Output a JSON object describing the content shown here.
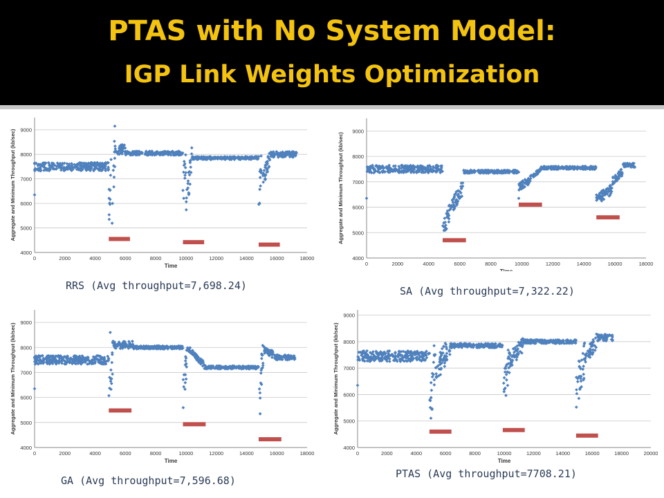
{
  "title_line1": "PTAS with No System Model:",
  "title_line2": "IGP Link Weights Optimization",
  "colors": {
    "title": "#f4c310",
    "header_bg": "#000000",
    "points": "#4f81bd",
    "markers": "#c0504d"
  },
  "chart_data": [
    {
      "type": "scatter",
      "caption": "RRS (Avg throughput=7,698.24)",
      "xlabel": "Time",
      "ylabel": "Aggregate and Minimum Throughput (kb/sec)",
      "xlim": [
        0,
        18000
      ],
      "ylim": [
        4000,
        9500
      ],
      "xticks": [
        0,
        2000,
        4000,
        6000,
        8000,
        10000,
        12000,
        14000,
        16000,
        18000
      ],
      "xtick_labels": [
        "0",
        "2000",
        "4000",
        "6000",
        "8000",
        "10000",
        "12000",
        "14000",
        "16000",
        "18000"
      ],
      "yticks": [
        4000,
        5000,
        6000,
        7000,
        8000,
        9000
      ],
      "ytick_labels": [
        "4000",
        "5000",
        "6000",
        "7000",
        "8000",
        "9000"
      ],
      "grid": true,
      "series": [
        {
          "role": "throughput",
          "color": "#4f81bd",
          "outliers": [
            [
              0,
              6350
            ],
            [
              5300,
              9150
            ]
          ],
          "segments": [
            {
              "x": [
                0,
                4900
              ],
              "y": [
                7500,
                7500
              ],
              "spread": 170
            },
            {
              "x": [
                4900,
                5100
              ],
              "y": [
                5800,
                7800
              ],
              "spread": 850
            },
            {
              "x": [
                5100,
                5300
              ],
              "y": [
                5200,
                8300
              ],
              "spread": 850
            },
            {
              "x": [
                5300,
                6000
              ],
              "y": [
                8200,
                8200
              ],
              "spread": 200
            },
            {
              "x": [
                6000,
                9800
              ],
              "y": [
                8050,
                8050
              ],
              "spread": 80
            },
            {
              "x": [
                9800,
                10000
              ],
              "y": [
                6500,
                7800
              ],
              "spread": 700
            },
            {
              "x": [
                10000,
                10400
              ],
              "y": [
                6000,
                7900
              ],
              "spread": 550
            },
            {
              "x": [
                10400,
                14800
              ],
              "y": [
                7850,
                7850
              ],
              "spread": 60
            },
            {
              "x": [
                14800,
                15000
              ],
              "y": [
                6200,
                7800
              ],
              "spread": 700
            },
            {
              "x": [
                15000,
                15600
              ],
              "y": [
                6800,
                7900
              ],
              "spread": 350
            },
            {
              "x": [
                15600,
                17300
              ],
              "y": [
                8000,
                8000
              ],
              "spread": 120
            }
          ]
        },
        {
          "role": "minimum",
          "color": "#c0504d",
          "segments": [
            {
              "x": [
                4900,
                6300
              ],
              "y": [
                4550,
                4550
              ]
            },
            {
              "x": [
                9800,
                11200
              ],
              "y": [
                4420,
                4420
              ]
            },
            {
              "x": [
                14800,
                16200
              ],
              "y": [
                4320,
                4320
              ]
            }
          ]
        }
      ]
    },
    {
      "type": "scatter",
      "caption": "SA (Avg throughput=7,322.22)",
      "xlabel": "Time",
      "ylabel": "Aggregate and Minimum Throughput (kb/sec)",
      "xlim": [
        0,
        18000
      ],
      "ylim": [
        4000,
        9500
      ],
      "xticks": [
        0,
        2000,
        4000,
        6000,
        8000,
        10000,
        12000,
        14000,
        16000,
        18000
      ],
      "xtick_labels": [
        "0",
        "2000",
        "4000",
        "6000",
        "8000",
        "10000",
        "12000",
        "14000",
        "16000",
        "18000"
      ],
      "yticks": [
        4000,
        5000,
        6000,
        7000,
        8000,
        9000
      ],
      "ytick_labels": [
        "4000",
        "5000",
        "6000",
        "7000",
        "8000",
        "9000"
      ],
      "grid": true,
      "series": [
        {
          "role": "throughput",
          "color": "#4f81bd",
          "outliers": [
            [
              0,
              6350
            ],
            [
              9800,
              6350
            ],
            [
              14900,
              6400
            ]
          ],
          "segments": [
            {
              "x": [
                0,
                4900
              ],
              "y": [
                7500,
                7500
              ],
              "spread": 150
            },
            {
              "x": [
                4900,
                5300
              ],
              "y": [
                5000,
                5700
              ],
              "spread": 350
            },
            {
              "x": [
                5300,
                6200
              ],
              "y": [
                5800,
                6800
              ],
              "spread": 300
            },
            {
              "x": [
                6200,
                9800
              ],
              "y": [
                7400,
                7400
              ],
              "spread": 60
            },
            {
              "x": [
                9800,
                10600
              ],
              "y": [
                6800,
                7100
              ],
              "spread": 150
            },
            {
              "x": [
                10600,
                11200
              ],
              "y": [
                7200,
                7450
              ],
              "spread": 80
            },
            {
              "x": [
                11200,
                14800
              ],
              "y": [
                7550,
                7550
              ],
              "spread": 60
            },
            {
              "x": [
                14800,
                15800
              ],
              "y": [
                6300,
                6700
              ],
              "spread": 200
            },
            {
              "x": [
                15800,
                16500
              ],
              "y": [
                7000,
                7400
              ],
              "spread": 150
            },
            {
              "x": [
                16500,
                17300
              ],
              "y": [
                7650,
                7650
              ],
              "spread": 80
            }
          ]
        },
        {
          "role": "minimum",
          "color": "#c0504d",
          "segments": [
            {
              "x": [
                4900,
                6400
              ],
              "y": [
                4700,
                4700
              ]
            },
            {
              "x": [
                9800,
                11300
              ],
              "y": [
                6100,
                6100
              ]
            },
            {
              "x": [
                14800,
                16300
              ],
              "y": [
                5600,
                5600
              ]
            }
          ]
        }
      ]
    },
    {
      "type": "scatter",
      "caption": "GA (Avg throughput=7,596.68)",
      "xlabel": "Time",
      "ylabel": "Aggregate and Minimum Throughput (kb/sec)",
      "xlim": [
        0,
        18000
      ],
      "ylim": [
        4000,
        9500
      ],
      "xticks": [
        0,
        2000,
        4000,
        6000,
        8000,
        10000,
        12000,
        14000,
        16000,
        18000
      ],
      "xtick_labels": [
        "0",
        "2000",
        "4000",
        "6000",
        "8000",
        "10000",
        "12000",
        "14000",
        "16000",
        "18000"
      ],
      "yticks": [
        4000,
        5000,
        6000,
        7000,
        8000,
        9000
      ],
      "ytick_labels": [
        "4000",
        "5000",
        "6000",
        "7000",
        "8000",
        "9000"
      ],
      "grid": true,
      "series": [
        {
          "role": "throughput",
          "color": "#4f81bd",
          "outliers": [
            [
              0,
              6350
            ],
            [
              5000,
              8600
            ],
            [
              14900,
              5350
            ]
          ],
          "segments": [
            {
              "x": [
                0,
                4900
              ],
              "y": [
                7500,
                7500
              ],
              "spread": 170
            },
            {
              "x": [
                4900,
                5150
              ],
              "y": [
                5800,
                7600
              ],
              "spread": 700
            },
            {
              "x": [
                5150,
                6500
              ],
              "y": [
                8100,
                8100
              ],
              "spread": 150
            },
            {
              "x": [
                6500,
                9800
              ],
              "y": [
                8000,
                8000
              ],
              "spread": 60
            },
            {
              "x": [
                9800,
                10100
              ],
              "y": [
                6000,
                7800
              ],
              "spread": 650
            },
            {
              "x": [
                10100,
                11200
              ],
              "y": [
                8000,
                7300
              ],
              "spread": 120
            },
            {
              "x": [
                11200,
                14800
              ],
              "y": [
                7200,
                7200
              ],
              "spread": 60
            },
            {
              "x": [
                14800,
                15100
              ],
              "y": [
                6000,
                7700
              ],
              "spread": 650
            },
            {
              "x": [
                15100,
                15800
              ],
              "y": [
                7900,
                7700
              ],
              "spread": 150
            },
            {
              "x": [
                15800,
                17200
              ],
              "y": [
                7600,
                7600
              ],
              "spread": 100
            }
          ]
        },
        {
          "role": "minimum",
          "color": "#c0504d",
          "segments": [
            {
              "x": [
                4900,
                6400
              ],
              "y": [
                5480,
                5480
              ]
            },
            {
              "x": [
                9800,
                11300
              ],
              "y": [
                4930,
                4930
              ]
            },
            {
              "x": [
                14800,
                16300
              ],
              "y": [
                4330,
                4330
              ]
            }
          ]
        }
      ]
    },
    {
      "type": "scatter",
      "caption": "PTAS (Avg throughput=7708.21)",
      "xlabel": "Time",
      "ylabel": "Aggregate and Minimum Throughput (kb/sec)",
      "xlim": [
        0,
        20000
      ],
      "ylim": [
        4000,
        9200
      ],
      "xticks": [
        0,
        2000,
        4000,
        6000,
        8000,
        10000,
        12000,
        14000,
        16000,
        18000,
        20000
      ],
      "xtick_labels": [
        "0",
        "2000",
        "4000",
        "6000",
        "8000",
        "10000",
        "12000",
        "14000",
        "16000",
        "18000",
        "20000"
      ],
      "yticks": [
        4000,
        5000,
        6000,
        7000,
        8000,
        9000
      ],
      "ytick_labels": [
        "4000",
        "5000",
        "6000",
        "7000",
        "8000",
        "9000"
      ],
      "grid": true,
      "series": [
        {
          "role": "throughput",
          "color": "#4f81bd",
          "outliers": [
            [
              0,
              6350
            ]
          ],
          "segments": [
            {
              "x": [
                0,
                4900
              ],
              "y": [
                7450,
                7450
              ],
              "spread": 200
            },
            {
              "x": [
                4900,
                5300
              ],
              "y": [
                5500,
                7400
              ],
              "spread": 900
            },
            {
              "x": [
                5300,
                6300
              ],
              "y": [
                6800,
                7900
              ],
              "spread": 450
            },
            {
              "x": [
                6300,
                9900
              ],
              "y": [
                7850,
                7850
              ],
              "spread": 80
            },
            {
              "x": [
                9900,
                10400
              ],
              "y": [
                6100,
                7400
              ],
              "spread": 700
            },
            {
              "x": [
                10400,
                11300
              ],
              "y": [
                7300,
                7900
              ],
              "spread": 300
            },
            {
              "x": [
                11300,
                14900
              ],
              "y": [
                8000,
                8000
              ],
              "spread": 70
            },
            {
              "x": [
                14900,
                15500
              ],
              "y": [
                6100,
                7500
              ],
              "spread": 750
            },
            {
              "x": [
                15500,
                16300
              ],
              "y": [
                7400,
                8000
              ],
              "spread": 300
            },
            {
              "x": [
                16300,
                17400
              ],
              "y": [
                8150,
                8150
              ],
              "spread": 120
            }
          ]
        },
        {
          "role": "minimum",
          "color": "#c0504d",
          "segments": [
            {
              "x": [
                4900,
                6400
              ],
              "y": [
                4600,
                4600
              ]
            },
            {
              "x": [
                9900,
                11400
              ],
              "y": [
                4660,
                4660
              ]
            },
            {
              "x": [
                14900,
                16400
              ],
              "y": [
                4450,
                4450
              ]
            }
          ]
        }
      ]
    }
  ]
}
